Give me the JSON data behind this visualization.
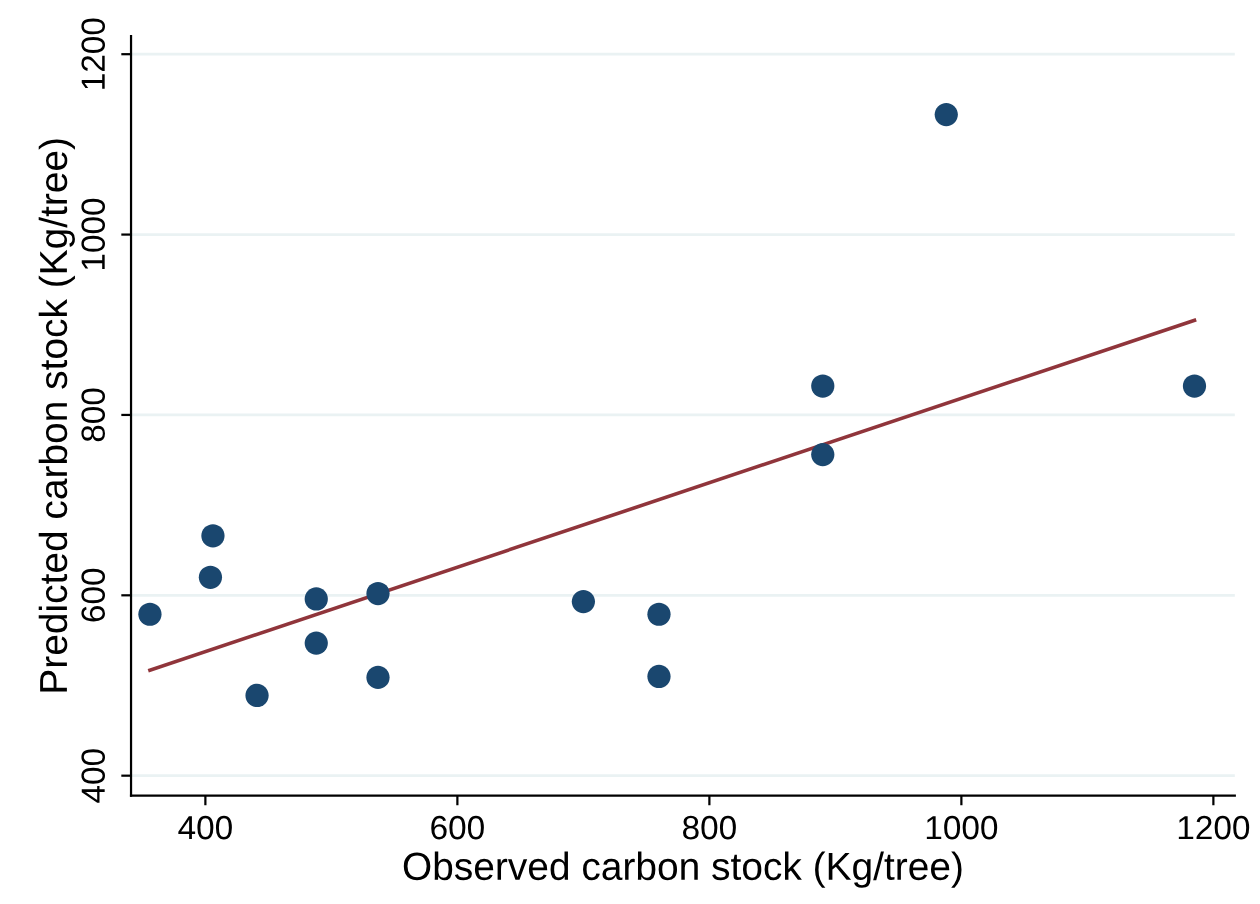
{
  "chart_data": {
    "type": "scatter",
    "xlabel": "Observed carbon stock (Kg/tree)",
    "ylabel": "Predicted carbon stock (Kg/tree)",
    "xlim": [
      341,
      1217
    ],
    "ylim": [
      378,
      1220
    ],
    "xticks": [
      400,
      600,
      800,
      1000,
      1200
    ],
    "yticks": [
      400,
      600,
      800,
      1000,
      1200
    ],
    "grid": "y",
    "marker": "circle",
    "series": [
      {
        "color": "#1a476f",
        "x": [
          356,
          406,
          404,
          441,
          488,
          488,
          537,
          537,
          700,
          760,
          760,
          890,
          890,
          988,
          1185
        ],
        "values": [
          579,
          666,
          620,
          489,
          596,
          547,
          602,
          509,
          593,
          579,
          510,
          832,
          756,
          1133,
          832
        ]
      },
      {
        "type": "line",
        "color": "#90353b",
        "x": [
          356,
          1185
        ],
        "values": [
          517,
          905
        ],
        "marker": "none",
        "line_style": "solid"
      }
    ]
  }
}
